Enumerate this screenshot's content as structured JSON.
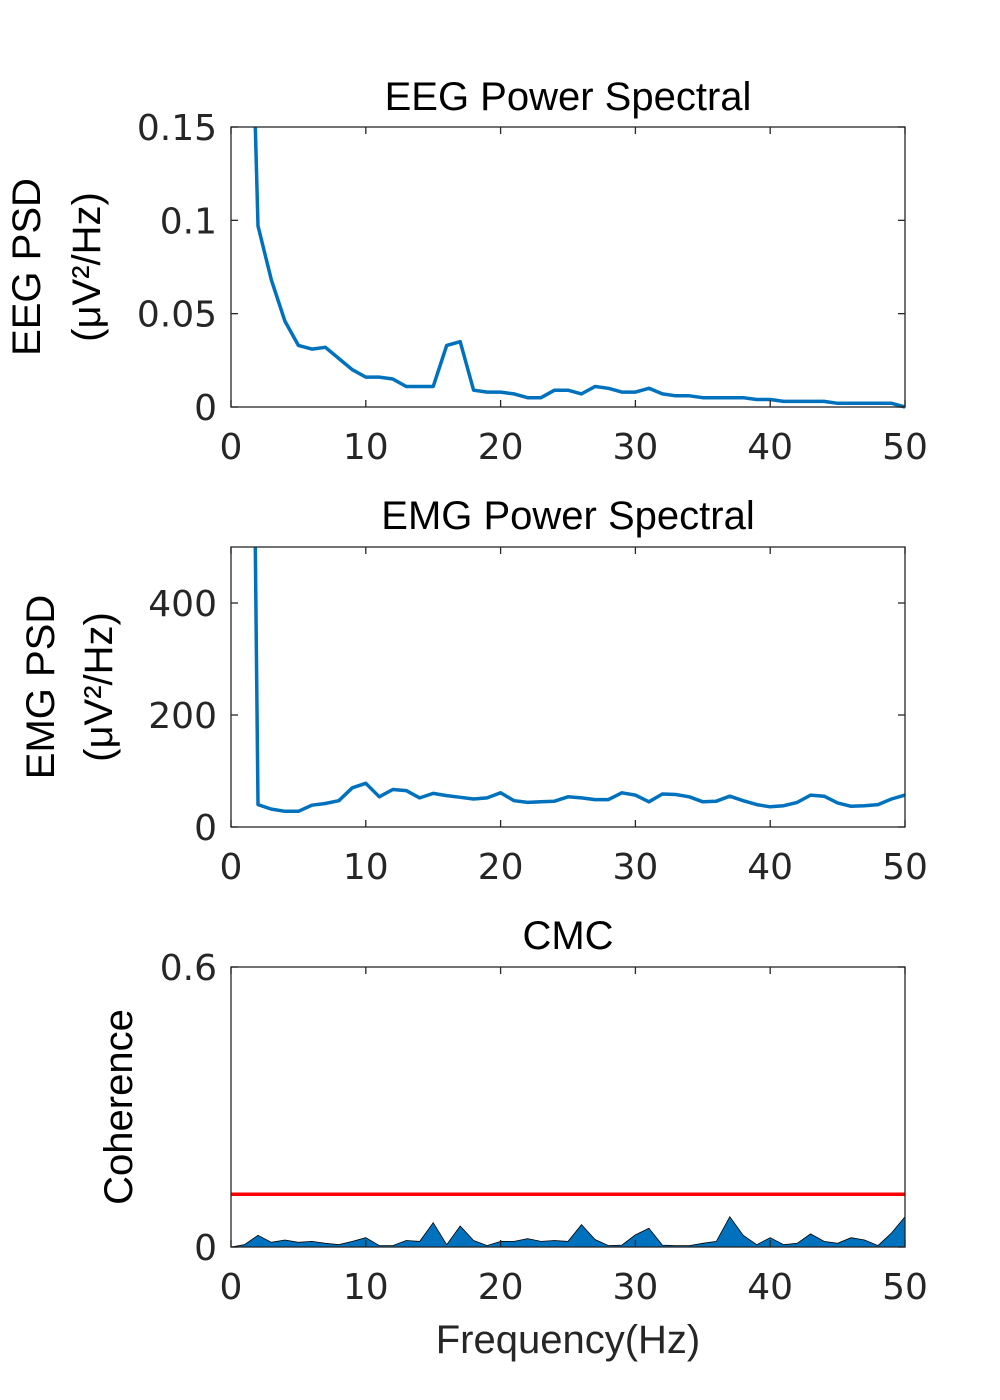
{
  "chart_data": [
    {
      "type": "line",
      "title": "EEG Power Spectral",
      "ylabel_lines": [
        "EEG PSD",
        "(μV²/Hz)"
      ],
      "xlabel": "",
      "xlim": [
        0,
        50
      ],
      "ylim": [
        0,
        0.15
      ],
      "xticks": [
        0,
        10,
        20,
        30,
        40,
        50
      ],
      "yticks": [
        0,
        0.05,
        0.1,
        0.15
      ],
      "ytick_labels": [
        "0",
        "0.05",
        "0.1",
        "0.15"
      ],
      "series": [
        {
          "color": "#0072BD",
          "x": [
            1.8,
            2,
            3,
            4,
            5,
            6,
            7,
            8,
            9,
            10,
            11,
            12,
            13,
            14,
            15,
            16,
            17,
            18,
            19,
            20,
            21,
            22,
            23,
            24,
            25,
            26,
            27,
            28,
            29,
            30,
            31,
            32,
            33,
            34,
            35,
            36,
            37,
            38,
            39,
            40,
            41,
            42,
            43,
            44,
            45,
            46,
            47,
            48,
            49,
            50
          ],
          "y": [
            0.15,
            0.097,
            0.068,
            0.046,
            0.033,
            0.031,
            0.032,
            0.026,
            0.02,
            0.016,
            0.016,
            0.015,
            0.011,
            0.011,
            0.011,
            0.033,
            0.035,
            0.009,
            0.008,
            0.008,
            0.007,
            0.005,
            0.005,
            0.009,
            0.009,
            0.007,
            0.011,
            0.01,
            0.008,
            0.008,
            0.01,
            0.007,
            0.006,
            0.006,
            0.005,
            0.005,
            0.005,
            0.005,
            0.004,
            0.004,
            0.003,
            0.003,
            0.003,
            0.003,
            0.002,
            0.002,
            0.002,
            0.002,
            0.002,
            0.0
          ]
        }
      ]
    },
    {
      "type": "line",
      "title": "EMG Power Spectral",
      "ylabel_lines": [
        "EMG PSD",
        "(μV²/Hz)"
      ],
      "xlabel": "",
      "xlim": [
        0,
        50
      ],
      "ylim": [
        0,
        500
      ],
      "xticks": [
        0,
        10,
        20,
        30,
        40,
        50
      ],
      "yticks": [
        0,
        200,
        400
      ],
      "ytick_labels": [
        "0",
        "200",
        "400"
      ],
      "series": [
        {
          "color": "#0072BD",
          "x": [
            1.8,
            2,
            3,
            4,
            5,
            6,
            7,
            8,
            9,
            10,
            11,
            12,
            13,
            14,
            15,
            16,
            17,
            18,
            19,
            20,
            21,
            22,
            23,
            24,
            25,
            26,
            27,
            28,
            29,
            30,
            31,
            32,
            33,
            34,
            35,
            36,
            37,
            38,
            39,
            40,
            41,
            42,
            43,
            44,
            45,
            46,
            47,
            48,
            49,
            50
          ],
          "y": [
            500,
            40,
            32,
            28,
            28,
            39,
            42,
            47,
            70,
            78,
            54,
            67,
            65,
            52,
            60,
            56,
            53,
            50,
            52,
            61,
            47,
            44,
            45,
            46,
            54,
            52,
            49,
            49,
            61,
            57,
            45,
            59,
            58,
            54,
            45,
            46,
            55,
            47,
            40,
            36,
            38,
            44,
            57,
            55,
            43,
            37,
            38,
            40,
            50,
            57
          ]
        }
      ]
    },
    {
      "type": "area",
      "title": "CMC",
      "ylabel_lines": [
        "Coherence"
      ],
      "xlabel": "Frequency(Hz)",
      "xlim": [
        0,
        50
      ],
      "ylim": [
        0,
        0.6
      ],
      "xticks": [
        0,
        10,
        20,
        30,
        40,
        50
      ],
      "yticks": [
        0,
        0.6
      ],
      "ytick_labels": [
        "0",
        "0.6"
      ],
      "series": [
        {
          "color": "#0072BD",
          "x": [
            0,
            1,
            2,
            3,
            4,
            5,
            6,
            7,
            8,
            9,
            10,
            11,
            12,
            13,
            14,
            15,
            16,
            17,
            18,
            19,
            20,
            21,
            22,
            23,
            24,
            25,
            26,
            27,
            28,
            29,
            30,
            31,
            32,
            33,
            34,
            35,
            36,
            37,
            38,
            39,
            40,
            41,
            42,
            43,
            44,
            45,
            46,
            47,
            48,
            49,
            50
          ],
          "y": [
            0.0,
            0.005,
            0.025,
            0.01,
            0.015,
            0.01,
            0.012,
            0.008,
            0.005,
            0.012,
            0.02,
            0.003,
            0.003,
            0.014,
            0.012,
            0.052,
            0.005,
            0.045,
            0.014,
            0.003,
            0.012,
            0.012,
            0.018,
            0.012,
            0.014,
            0.012,
            0.048,
            0.016,
            0.003,
            0.004,
            0.026,
            0.04,
            0.004,
            0.003,
            0.003,
            0.008,
            0.012,
            0.065,
            0.025,
            0.005,
            0.02,
            0.005,
            0.008,
            0.028,
            0.012,
            0.008,
            0.02,
            0.015,
            0.003,
            0.03,
            0.065
          ]
        },
        {
          "color": "#FF0000",
          "x": [
            0,
            50
          ],
          "y": [
            0.113,
            0.113
          ]
        }
      ]
    }
  ]
}
